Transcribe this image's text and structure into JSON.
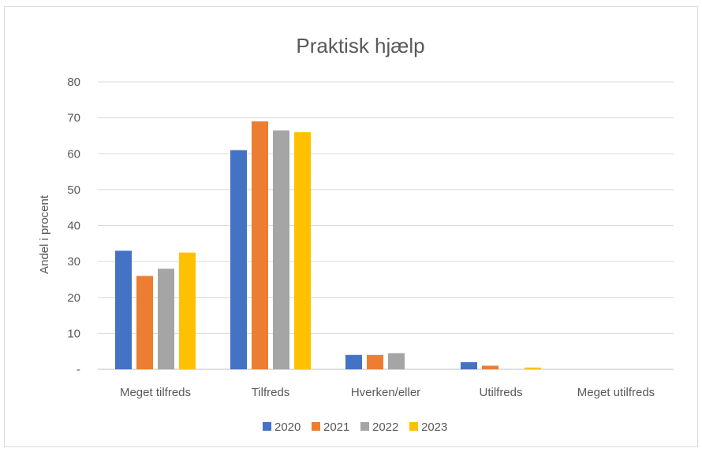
{
  "chart_data": {
    "type": "bar",
    "title": "Praktisk hjælp",
    "xlabel": "",
    "ylabel": "Andel i procent",
    "ylim": [
      0,
      80
    ],
    "yticks": [
      {
        "value": 0,
        "label": "-"
      },
      {
        "value": 10,
        "label": "10"
      },
      {
        "value": 20,
        "label": "20"
      },
      {
        "value": 30,
        "label": "30"
      },
      {
        "value": 40,
        "label": "40"
      },
      {
        "value": 50,
        "label": "50"
      },
      {
        "value": 60,
        "label": "60"
      },
      {
        "value": 70,
        "label": "70"
      },
      {
        "value": 80,
        "label": "80"
      }
    ],
    "grid": true,
    "legend_position": "bottom",
    "categories": [
      "Meget tilfreds",
      "Tilfreds",
      "Hverken/eller",
      "Utilfreds",
      "Meget utilfreds"
    ],
    "series": [
      {
        "name": "2020",
        "color": "#4472c4",
        "values": [
          33,
          61,
          4,
          2,
          0
        ]
      },
      {
        "name": "2021",
        "color": "#ed7d31",
        "values": [
          26,
          69,
          4,
          1,
          0
        ]
      },
      {
        "name": "2022",
        "color": "#a5a5a5",
        "values": [
          28,
          66.5,
          4.5,
          0,
          0
        ]
      },
      {
        "name": "2023",
        "color": "#ffc000",
        "values": [
          32.5,
          66,
          0,
          0.5,
          0
        ]
      }
    ]
  }
}
